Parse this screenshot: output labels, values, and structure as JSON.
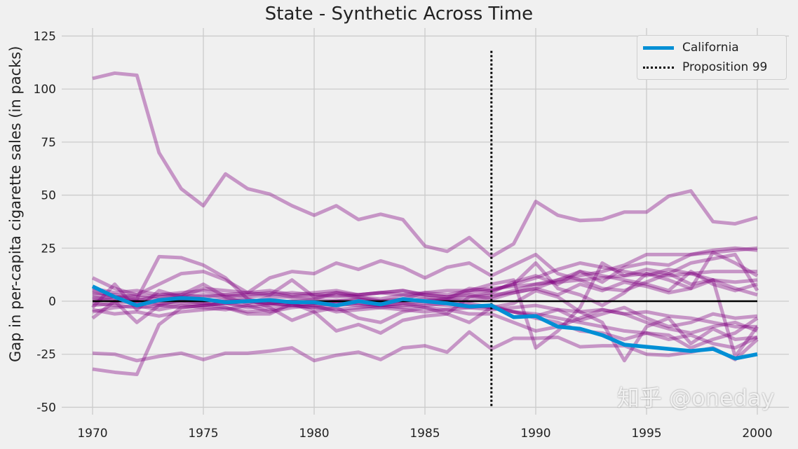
{
  "chart_data": {
    "type": "line",
    "title": "State - Synthetic Across Time",
    "xlabel": "",
    "ylabel": "Gap in per-capita cigarette sales (in packs)",
    "xlim": [
      1968.5,
      2001.5
    ],
    "ylim": [
      -53,
      128
    ],
    "xticks": [
      1970,
      1975,
      1980,
      1985,
      1990,
      1995,
      2000
    ],
    "yticks": [
      -50,
      -25,
      0,
      25,
      50,
      75,
      100,
      125
    ],
    "grid": true,
    "legend_position": "top-right",
    "x": [
      1970,
      1971,
      1972,
      1973,
      1974,
      1975,
      1976,
      1977,
      1978,
      1979,
      1980,
      1981,
      1982,
      1983,
      1984,
      1985,
      1986,
      1987,
      1988,
      1989,
      1990,
      1991,
      1992,
      1993,
      1994,
      1995,
      1996,
      1997,
      1998,
      1999,
      2000
    ],
    "treated": {
      "name": "California",
      "color": "#008fd5",
      "values": [
        7,
        2,
        -2,
        0.5,
        1.5,
        1,
        -0.5,
        0,
        0.5,
        -0.5,
        -0.5,
        -2,
        0,
        -1.5,
        1,
        0,
        -1,
        -2.5,
        -2,
        -7.5,
        -7,
        -12,
        -13,
        -16,
        -20.5,
        -21.5,
        -22.5,
        -23.5,
        -22.5,
        -27,
        -25
      ]
    },
    "intervention": {
      "name": "Proposition 99",
      "x": 1988,
      "color": "#000000"
    },
    "zero_line_color": "#000000",
    "control_color": "#800080",
    "controls": [
      [
        105,
        107.5,
        106.5,
        70,
        53,
        45,
        60,
        53,
        50.5,
        45,
        40.5,
        45,
        38.5,
        41,
        38.5,
        26,
        23.5,
        30,
        21,
        27,
        47,
        40.5,
        38,
        38.5,
        42,
        42,
        49.5,
        52,
        37.5,
        36.5,
        39.5
      ],
      [
        -24.5,
        -25,
        -28,
        -26,
        -24.5,
        -27.5,
        -24.5,
        -24.5,
        -23.5,
        -22,
        -28,
        -25.5,
        -24,
        -27.5,
        -22,
        -21,
        -24,
        -14.5,
        -22.5,
        -17.5,
        -17.5,
        -17,
        -21.5,
        -21,
        -21,
        -25,
        -25.5,
        -24,
        -22,
        -27.5,
        -18
      ],
      [
        -32,
        -33.5,
        -34.5,
        -11,
        -3,
        -2,
        -1,
        0,
        -1,
        -2,
        -1,
        0,
        -1,
        -2,
        -1,
        0,
        1,
        0,
        2,
        5,
        8,
        10,
        12,
        14,
        17,
        22,
        22,
        22,
        23,
        24,
        25
      ],
      [
        11,
        6,
        3,
        8,
        13,
        14,
        10,
        4,
        11,
        14,
        13,
        18,
        15,
        19,
        16,
        11,
        16,
        18,
        12,
        17,
        22,
        13,
        10,
        6,
        5,
        9,
        13,
        18,
        20,
        22,
        5
      ],
      [
        5,
        2,
        1,
        21,
        20.5,
        17,
        11,
        1,
        -3,
        -9,
        -5,
        -3,
        -8,
        -10,
        -5,
        -3,
        -6,
        2,
        4,
        9,
        12,
        8,
        14,
        9,
        16,
        18,
        17,
        22,
        24,
        25,
        24
      ],
      [
        -8,
        0,
        -10,
        -2,
        1,
        -1,
        -3,
        -6,
        -6,
        -1,
        -5,
        -14,
        -11,
        -15,
        -9,
        -7,
        -6,
        -10,
        -3,
        -1,
        5,
        2,
        -5,
        -10,
        -28,
        -12,
        -8,
        -20,
        -13,
        -18,
        -17
      ],
      [
        -3,
        8,
        -4,
        5,
        2,
        6,
        5,
        4,
        3,
        10,
        2,
        3,
        2,
        0,
        1,
        4,
        3,
        5,
        8,
        10,
        -22,
        -14,
        -3,
        18,
        12,
        15,
        13,
        8,
        10,
        -26,
        -12
      ],
      [
        3,
        2,
        0,
        3,
        3,
        8,
        2,
        -1,
        2,
        2,
        1,
        4,
        2,
        1,
        3,
        2,
        1,
        6,
        5,
        8,
        18,
        6,
        3,
        -2,
        4,
        13,
        10,
        6,
        23,
        18,
        12
      ],
      [
        -5,
        -3,
        -2,
        -4,
        -2,
        -3,
        -4,
        -2,
        -5,
        -3,
        -2,
        -5,
        -4,
        -3,
        -4,
        -5,
        -4,
        -3,
        -2,
        -5,
        -8,
        -10,
        -14,
        -15,
        -18,
        -15,
        -16,
        -22,
        -18,
        -15,
        -8
      ],
      [
        0,
        1,
        -1,
        0,
        1,
        0,
        1,
        0,
        -1,
        0,
        1,
        0,
        1,
        0,
        1,
        0,
        1,
        2,
        3,
        4,
        6,
        10,
        14,
        12,
        10,
        8,
        5,
        14,
        8,
        5,
        8
      ],
      [
        2,
        0,
        1,
        -1,
        0,
        -1,
        0,
        1,
        -1,
        0,
        -1,
        0,
        1,
        -1,
        0,
        1,
        0,
        -1,
        -3,
        -5,
        -6,
        -8,
        -10,
        -12,
        -14,
        -15,
        -18,
        -16,
        -20,
        -22,
        -17
      ],
      [
        -2,
        -1,
        0,
        -2,
        -1,
        -2,
        -1,
        -3,
        -2,
        -1,
        -2,
        -1,
        -2,
        -3,
        -2,
        -1,
        -2,
        -3,
        -4,
        -3,
        -2,
        -4,
        -5,
        -4,
        -6,
        -5,
        -7,
        -8,
        -10,
        -12,
        -12
      ],
      [
        1,
        2,
        3,
        2,
        3,
        2,
        3,
        2,
        3,
        4,
        3,
        4,
        3,
        4,
        3,
        4,
        5,
        5,
        6,
        7,
        8,
        9,
        10,
        11,
        12,
        13,
        12,
        13,
        14,
        14,
        14
      ],
      [
        4,
        3,
        2,
        1,
        2,
        3,
        2,
        3,
        4,
        2,
        3,
        2,
        3,
        4,
        5,
        3,
        2,
        3,
        1,
        4,
        6,
        3,
        8,
        5,
        9,
        7,
        4,
        6,
        10,
        6,
        3
      ],
      [
        -1,
        -2,
        -3,
        -2,
        -3,
        -2,
        -1,
        -2,
        -1,
        -2,
        -3,
        -2,
        -1,
        -2,
        -3,
        -2,
        -1,
        -2,
        -3,
        -5,
        -7,
        -4,
        -9,
        -6,
        -3,
        -8,
        -12,
        -10,
        -6,
        -8,
        -7
      ],
      [
        6,
        4,
        5,
        3,
        4,
        5,
        3,
        4,
        5,
        3,
        4,
        5,
        3,
        4,
        5,
        3,
        2,
        4,
        5,
        8,
        11,
        15,
        18,
        16,
        14,
        12,
        15,
        13,
        10,
        9,
        10
      ],
      [
        -4,
        -6,
        -5,
        -7,
        -5,
        -4,
        -3,
        -5,
        -4,
        -2,
        -3,
        -4,
        -3,
        -2,
        -1,
        -3,
        -4,
        -6,
        -6,
        -10,
        -14,
        -12,
        -8,
        -4,
        -6,
        -10,
        -13,
        -15,
        -12,
        -10,
        -14
      ]
    ]
  },
  "watermark": "知乎 @oneday"
}
